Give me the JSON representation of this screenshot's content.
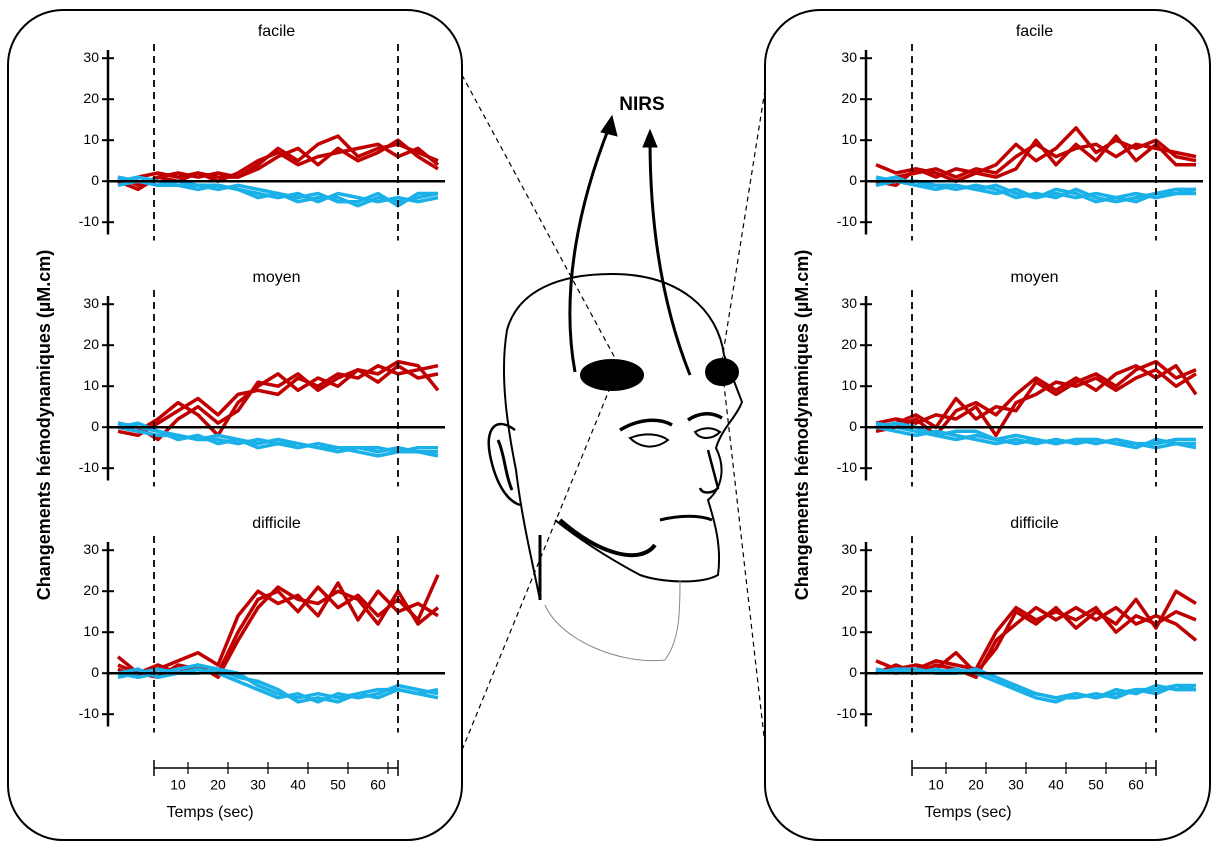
{
  "head_label": "NIRS",
  "chart_data": [
    {
      "type": "line",
      "title": "facile",
      "xlim": [
        -7.5,
        76.75
      ],
      "ylim": [
        -13,
        32
      ],
      "yticks": [
        -10,
        0,
        10,
        20,
        30
      ],
      "baseline": 0,
      "markers": [
        4,
        65
      ],
      "x": [
        -5,
        0,
        5,
        10,
        15,
        20,
        25,
        30,
        35,
        40,
        45,
        50,
        55,
        60,
        65,
        70,
        75
      ],
      "series": [
        {
          "color": "#c00000",
          "values": [
            1,
            -1,
            1,
            2,
            1,
            2,
            1,
            4,
            8,
            5,
            9,
            11,
            6,
            8,
            9,
            7,
            5
          ]
        },
        {
          "color": "#c00000",
          "values": [
            -1,
            1,
            2,
            1,
            2,
            0,
            2,
            5,
            7,
            4,
            6,
            7,
            8,
            9,
            6,
            8,
            4
          ]
        },
        {
          "color": "#c00000",
          "values": [
            0,
            -2,
            1,
            0,
            2,
            1,
            1,
            3,
            6,
            8,
            4,
            8,
            5,
            7,
            10,
            6,
            3
          ]
        },
        {
          "color": "#1ab0e8",
          "values": [
            1,
            0,
            -1,
            -1,
            -2,
            -1,
            -2,
            -3,
            -4,
            -3,
            -5,
            -3,
            -4,
            -5,
            -4,
            -5,
            -4
          ]
        },
        {
          "color": "#1ab0e8",
          "values": [
            0,
            1,
            0,
            -1,
            -1,
            -2,
            -1,
            -2,
            -3,
            -5,
            -4,
            -4,
            -6,
            -4,
            -5,
            -4,
            -3
          ]
        },
        {
          "color": "#1ab0e8",
          "values": [
            -1,
            0,
            -1,
            0,
            -1,
            -1,
            -2,
            -4,
            -3,
            -4,
            -3,
            -5,
            -5,
            -3,
            -6,
            -3,
            -3
          ]
        }
      ]
    },
    {
      "type": "line",
      "title": "moyen",
      "ylabel": "Changements hémodynamiques (µM.cm)",
      "xlim": [
        -7.5,
        76.75
      ],
      "ylim": [
        -13,
        32
      ],
      "yticks": [
        -10,
        0,
        10,
        20,
        30
      ],
      "baseline": 0,
      "markers": [
        4,
        65
      ],
      "x": [
        -5,
        0,
        5,
        10,
        15,
        20,
        25,
        30,
        35,
        40,
        45,
        50,
        55,
        60,
        65,
        70,
        75
      ],
      "series": [
        {
          "color": "#c00000",
          "values": [
            0,
            -1,
            2,
            6,
            3,
            -2,
            6,
            10,
            13,
            9,
            12,
            10,
            14,
            13,
            16,
            15,
            9
          ]
        },
        {
          "color": "#c00000",
          "values": [
            -1,
            -2,
            1,
            4,
            7,
            3,
            8,
            9,
            8,
            12,
            10,
            13,
            12,
            15,
            13,
            14,
            15
          ]
        },
        {
          "color": "#c00000",
          "values": [
            1,
            0,
            -3,
            2,
            5,
            1,
            4,
            11,
            10,
            13,
            9,
            12,
            14,
            11,
            15,
            12,
            13
          ]
        },
        {
          "color": "#1ab0e8",
          "values": [
            0,
            -1,
            -2,
            -2,
            -3,
            -3,
            -4,
            -3,
            -4,
            -5,
            -4,
            -5,
            -5,
            -6,
            -5,
            -6,
            -6
          ]
        },
        {
          "color": "#1ab0e8",
          "values": [
            1,
            0,
            -1,
            -3,
            -2,
            -4,
            -3,
            -4,
            -3,
            -4,
            -5,
            -6,
            -5,
            -5,
            -6,
            -5,
            -5
          ]
        },
        {
          "color": "#1ab0e8",
          "values": [
            0,
            1,
            -1,
            -2,
            -3,
            -2,
            -3,
            -5,
            -4,
            -4,
            -5,
            -5,
            -6,
            -7,
            -6,
            -6,
            -7
          ]
        }
      ]
    },
    {
      "type": "line",
      "title": "difficile",
      "xlabel": "Temps (sec)",
      "xlim": [
        -7.5,
        76.75
      ],
      "ylim": [
        -13,
        32
      ],
      "yticks": [
        -10,
        0,
        10,
        20,
        30
      ],
      "xticks": [
        10,
        20,
        30,
        40,
        50,
        60
      ],
      "baseline": 0,
      "markers": [
        4,
        65
      ],
      "x": [
        -5,
        0,
        5,
        10,
        15,
        20,
        25,
        30,
        35,
        40,
        45,
        50,
        55,
        60,
        65,
        70,
        75
      ],
      "series": [
        {
          "color": "#c00000",
          "values": [
            4,
            0,
            -1,
            2,
            1,
            0,
            10,
            18,
            20,
            15,
            21,
            16,
            19,
            14,
            18,
            13,
            24
          ]
        },
        {
          "color": "#c00000",
          "values": [
            1,
            -1,
            1,
            3,
            5,
            2,
            14,
            20,
            17,
            19,
            14,
            22,
            13,
            20,
            15,
            17,
            14
          ]
        },
        {
          "color": "#c00000",
          "values": [
            2,
            0,
            2,
            0,
            2,
            -1,
            8,
            16,
            21,
            18,
            17,
            20,
            18,
            12,
            20,
            12,
            16
          ]
        },
        {
          "color": "#1ab0e8",
          "values": [
            0,
            -1,
            0,
            1,
            2,
            1,
            0,
            -3,
            -5,
            -6,
            -5,
            -6,
            -5,
            -4,
            -4,
            -5,
            -4
          ]
        },
        {
          "color": "#1ab0e8",
          "values": [
            -1,
            0,
            1,
            0,
            1,
            0,
            -2,
            -4,
            -6,
            -5,
            -7,
            -5,
            -6,
            -5,
            -3,
            -4,
            -5
          ]
        },
        {
          "color": "#1ab0e8",
          "values": [
            0,
            1,
            -1,
            0,
            0,
            1,
            -1,
            -2,
            -4,
            -7,
            -6,
            -7,
            -5,
            -6,
            -4,
            -5,
            -6
          ]
        }
      ]
    },
    {
      "type": "line",
      "title": "facile",
      "xlim": [
        -7.5,
        76.75
      ],
      "ylim": [
        -13,
        32
      ],
      "yticks": [
        -10,
        0,
        10,
        20,
        30
      ],
      "baseline": 0,
      "markers": [
        4,
        65
      ],
      "x": [
        -5,
        0,
        5,
        10,
        15,
        20,
        25,
        30,
        35,
        40,
        45,
        50,
        55,
        60,
        65,
        70,
        75
      ],
      "series": [
        {
          "color": "#c00000",
          "values": [
            4,
            2,
            3,
            1,
            3,
            2,
            4,
            9,
            5,
            8,
            13,
            7,
            10,
            8,
            10,
            6,
            5
          ]
        },
        {
          "color": "#c00000",
          "values": [
            -1,
            1,
            2,
            3,
            1,
            3,
            2,
            6,
            9,
            6,
            8,
            9,
            6,
            9,
            8,
            7,
            6
          ]
        },
        {
          "color": "#c00000",
          "values": [
            0,
            -1,
            3,
            2,
            0,
            2,
            1,
            3,
            10,
            4,
            9,
            5,
            11,
            5,
            9,
            4,
            4
          ]
        },
        {
          "color": "#1ab0e8",
          "values": [
            1,
            0,
            -1,
            -2,
            -1,
            -2,
            -3,
            -2,
            -4,
            -3,
            -4,
            -3,
            -4,
            -3,
            -4,
            -3,
            -2
          ]
        },
        {
          "color": "#1ab0e8",
          "values": [
            0,
            1,
            -1,
            -1,
            -2,
            -1,
            -2,
            -4,
            -3,
            -4,
            -2,
            -4,
            -5,
            -4,
            -3,
            -2,
            -2
          ]
        },
        {
          "color": "#1ab0e8",
          "values": [
            -1,
            0,
            0,
            -1,
            -1,
            -2,
            -1,
            -3,
            -4,
            -2,
            -3,
            -5,
            -4,
            -5,
            -3,
            -3,
            -3
          ]
        }
      ]
    },
    {
      "type": "line",
      "title": "moyen",
      "ylabel": "Changements hémodynamiques (µM.cm)",
      "xlim": [
        -7.5,
        76.75
      ],
      "ylim": [
        -13,
        32
      ],
      "yticks": [
        -10,
        0,
        10,
        20,
        30
      ],
      "baseline": 0,
      "markers": [
        4,
        65
      ],
      "x": [
        -5,
        0,
        5,
        10,
        15,
        20,
        25,
        30,
        35,
        40,
        45,
        50,
        55,
        60,
        65,
        70,
        75
      ],
      "series": [
        {
          "color": "#c00000",
          "values": [
            0,
            1,
            3,
            0,
            7,
            2,
            5,
            4,
            11,
            8,
            11,
            13,
            10,
            14,
            16,
            12,
            14
          ]
        },
        {
          "color": "#c00000",
          "values": [
            -1,
            0,
            2,
            -2,
            4,
            6,
            3,
            8,
            12,
            9,
            12,
            9,
            13,
            15,
            12,
            15,
            8
          ]
        },
        {
          "color": "#c00000",
          "values": [
            1,
            2,
            1,
            3,
            2,
            5,
            -2,
            6,
            8,
            11,
            10,
            12,
            9,
            12,
            14,
            10,
            13
          ]
        },
        {
          "color": "#1ab0e8",
          "values": [
            0,
            -1,
            -2,
            -1,
            -2,
            -3,
            -4,
            -3,
            -4,
            -3,
            -4,
            -3,
            -4,
            -5,
            -3,
            -4,
            -4
          ]
        },
        {
          "color": "#1ab0e8",
          "values": [
            1,
            0,
            -1,
            -2,
            -3,
            -2,
            -3,
            -4,
            -3,
            -4,
            -3,
            -4,
            -3,
            -4,
            -4,
            -3,
            -3
          ]
        },
        {
          "color": "#1ab0e8",
          "values": [
            0,
            1,
            0,
            -2,
            -1,
            -1,
            -3,
            -2,
            -3,
            -4,
            -3,
            -3,
            -4,
            -4,
            -5,
            -4,
            -5
          ]
        }
      ]
    },
    {
      "type": "line",
      "title": "difficile",
      "xlabel": "Temps (sec)",
      "xlim": [
        -7.5,
        76.75
      ],
      "ylim": [
        -13,
        32
      ],
      "yticks": [
        -10,
        0,
        10,
        20,
        30
      ],
      "xticks": [
        10,
        20,
        30,
        40,
        50,
        60
      ],
      "baseline": 0,
      "markers": [
        4,
        65
      ],
      "x": [
        -5,
        0,
        5,
        10,
        15,
        20,
        25,
        30,
        35,
        40,
        45,
        50,
        55,
        60,
        65,
        70,
        75
      ],
      "series": [
        {
          "color": "#c00000",
          "values": [
            3,
            1,
            2,
            1,
            5,
            0,
            6,
            15,
            12,
            16,
            11,
            15,
            12,
            18,
            11,
            20,
            17
          ]
        },
        {
          "color": "#c00000",
          "values": [
            0,
            2,
            0,
            2,
            1,
            -1,
            8,
            12,
            16,
            13,
            16,
            13,
            16,
            12,
            14,
            12,
            8
          ]
        },
        {
          "color": "#c00000",
          "values": [
            1,
            0,
            1,
            3,
            2,
            1,
            10,
            16,
            13,
            15,
            13,
            16,
            10,
            14,
            12,
            15,
            13
          ]
        },
        {
          "color": "#1ab0e8",
          "values": [
            0,
            1,
            0,
            1,
            0,
            1,
            -1,
            -3,
            -5,
            -6,
            -5,
            -6,
            -5,
            -4,
            -4,
            -3,
            -3
          ]
        },
        {
          "color": "#1ab0e8",
          "values": [
            1,
            0,
            1,
            0,
            1,
            0,
            -2,
            -4,
            -6,
            -7,
            -5,
            -6,
            -4,
            -5,
            -3,
            -4,
            -4
          ]
        },
        {
          "color": "#1ab0e8",
          "values": [
            0,
            1,
            1,
            0,
            0,
            1,
            -1,
            -4,
            -5,
            -6,
            -6,
            -5,
            -6,
            -4,
            -5,
            -3,
            -4
          ]
        }
      ]
    }
  ]
}
